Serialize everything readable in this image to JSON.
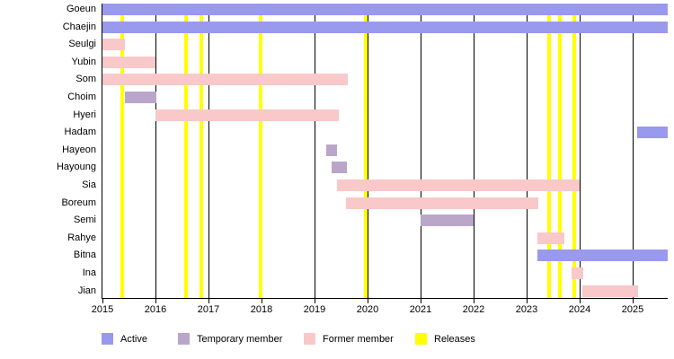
{
  "chart_data": {
    "type": "bar",
    "subtype": "member-timeline-gantt",
    "orientation": "horizontal",
    "title": "",
    "xlabel": "",
    "ylabel": "",
    "grid": true,
    "x_axis": {
      "min": 2015,
      "max": 2025.66,
      "tick_years": [
        2015,
        2016,
        2017,
        2018,
        2019,
        2020,
        2021,
        2022,
        2023,
        2024,
        2025
      ]
    },
    "rows": [
      {
        "name": "Goeun",
        "status": "active",
        "start": 2015.0,
        "end": 2025.66
      },
      {
        "name": "Chaejin",
        "status": "active",
        "start": 2015.0,
        "end": 2025.66
      },
      {
        "name": "Seulgi",
        "status": "former",
        "start": 2015.0,
        "end": 2015.42
      },
      {
        "name": "Yubin",
        "status": "former",
        "start": 2015.0,
        "end": 2016.0
      },
      {
        "name": "Som",
        "status": "former",
        "start": 2015.0,
        "end": 2019.62
      },
      {
        "name": "Choim",
        "status": "temporary",
        "start": 2015.43,
        "end": 2016.02
      },
      {
        "name": "Hyeri",
        "status": "former",
        "start": 2016.0,
        "end": 2019.45
      },
      {
        "name": "Hadam",
        "status": "active",
        "start": 2025.08,
        "end": 2025.66
      },
      {
        "name": "Hayeon",
        "status": "temporary",
        "start": 2019.22,
        "end": 2019.42
      },
      {
        "name": "Hayoung",
        "status": "temporary",
        "start": 2019.32,
        "end": 2019.6
      },
      {
        "name": "Sia",
        "status": "former",
        "start": 2019.42,
        "end": 2024.0
      },
      {
        "name": "Boreum",
        "status": "former",
        "start": 2019.6,
        "end": 2023.22
      },
      {
        "name": "Semi",
        "status": "temporary",
        "start": 2021.0,
        "end": 2022.0
      },
      {
        "name": "Rahye",
        "status": "former",
        "start": 2023.2,
        "end": 2023.7
      },
      {
        "name": "Bitna",
        "status": "active",
        "start": 2023.2,
        "end": 2025.66
      },
      {
        "name": "Ina",
        "status": "former",
        "start": 2023.85,
        "end": 2024.07
      },
      {
        "name": "Jian",
        "status": "former",
        "start": 2024.05,
        "end": 2025.1
      }
    ],
    "releases": [
      2015.37,
      2016.57,
      2016.87,
      2017.98,
      2019.96,
      2023.42,
      2023.62,
      2023.89
    ],
    "legend": [
      {
        "label": "Active",
        "status": "active"
      },
      {
        "label": "Temporary member",
        "status": "temporary"
      },
      {
        "label": "Former member",
        "status": "former"
      },
      {
        "label": "Releases",
        "status": "releases"
      }
    ],
    "colors": {
      "active": "#9999ee",
      "temporary": "#b9a6c9",
      "former": "#f9c8c9",
      "releases": "#ffff00",
      "axis": "#000000"
    }
  }
}
